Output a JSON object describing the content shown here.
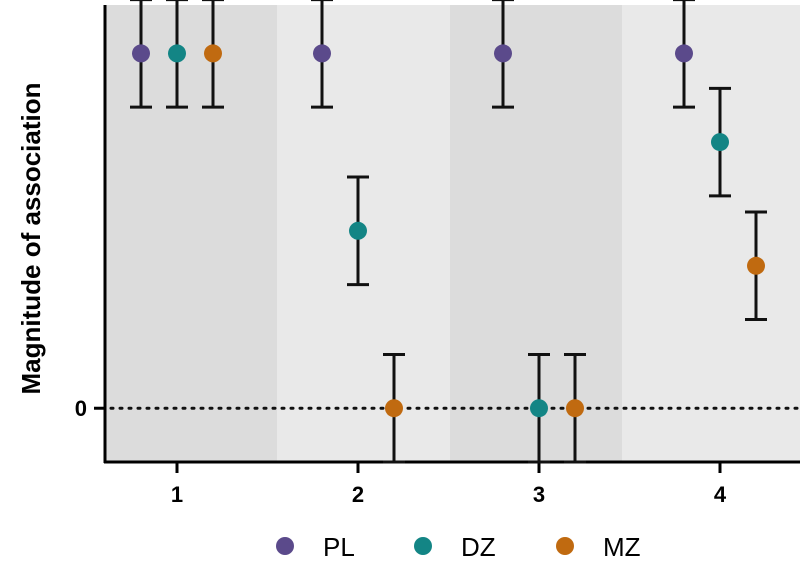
{
  "chart_data": {
    "type": "scatter",
    "title": "",
    "xlabel": "",
    "ylabel": "Magnitude of association",
    "categories": [
      "1",
      "2",
      "3",
      "4"
    ],
    "ylim": [
      -1,
      7.5
    ],
    "zero_label": "0",
    "zero_reference_line": "dotted",
    "band_colors": [
      "#dcdcdc",
      "#e9e9e9"
    ],
    "legend_position": "bottom",
    "series": [
      {
        "name": "PL",
        "color": "#5b4a8b",
        "values": [
          6.6,
          6.6,
          6.6,
          6.6
        ],
        "error": [
          1.0,
          1.0,
          1.0,
          1.0
        ]
      },
      {
        "name": "DZ",
        "color": "#138585",
        "values": [
          6.6,
          3.3,
          0.0,
          4.95
        ],
        "error": [
          1.0,
          1.0,
          1.0,
          1.0
        ]
      },
      {
        "name": "MZ",
        "color": "#c06a10",
        "values": [
          6.6,
          0.0,
          0.0,
          2.65
        ],
        "error": [
          1.0,
          1.0,
          1.0,
          1.0
        ]
      }
    ]
  }
}
